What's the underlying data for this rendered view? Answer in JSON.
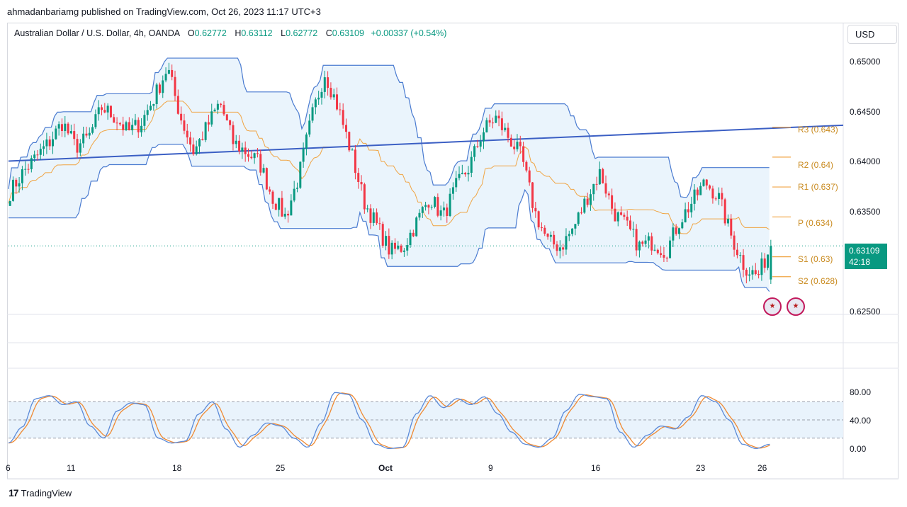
{
  "publisher": "ahmadanbariamg published on TradingView.com, Oct 26, 2023 11:17 UTC+3",
  "legend": {
    "symbol": "Australian Dollar / U.S. Dollar, 4h, OANDA",
    "o_key": "O",
    "o": "0.62772",
    "h_key": "H",
    "h": "0.63112",
    "l_key": "L",
    "l": "0.62772",
    "c_key": "C",
    "c": "0.63109",
    "change": "+0.00337 (+0.54%)"
  },
  "currency": "USD",
  "current_price": {
    "price": "0.63109",
    "countdown": "42:18"
  },
  "price_axis": [
    "0.65000",
    "0.64500",
    "0.64000",
    "0.63500",
    "0.62500"
  ],
  "osc_axis": [
    "80.00",
    "40.00",
    "0.00"
  ],
  "pivot_labels": [
    "R3 (0.643)",
    "R2 (0.64)",
    "R1 (0.637)",
    "P (0.634)",
    "S1 (0.63)",
    "S2 (0.628)"
  ],
  "date_labels": [
    "6",
    "11",
    "18",
    "25",
    "Oct",
    "9",
    "16",
    "23",
    "26"
  ],
  "brand": "TradingView",
  "flag_icon": "us-flag-icon",
  "colors": {
    "up": "#089981",
    "down": "#f23645",
    "band": "#4a7bd0",
    "pivot": "#f0a443",
    "trend": "#3b5fc4",
    "k": "#5b8ad8",
    "d": "#ef8a33"
  },
  "chart_data": {
    "type": "candlestick",
    "symbol": "AUDUSD",
    "timeframe": "4h",
    "ylim": [
      0.6245,
      0.6515
    ],
    "x_labels": [
      "6",
      "11",
      "18",
      "25",
      "Oct",
      "9",
      "16",
      "23",
      "26"
    ],
    "pivots": {
      "R3": 0.643,
      "R2": 0.64,
      "R1": 0.637,
      "P": 0.634,
      "S1": 0.63,
      "S2": 0.628
    },
    "last": {
      "open": 0.62772,
      "high": 0.63112,
      "low": 0.62772,
      "close": 0.63109
    },
    "path_anchors": [
      0.6365,
      0.6385,
      0.64,
      0.6415,
      0.6435,
      0.641,
      0.642,
      0.645,
      0.644,
      0.6425,
      0.6435,
      0.646,
      0.649,
      0.644,
      0.6405,
      0.643,
      0.6455,
      0.6415,
      0.6405,
      0.6395,
      0.636,
      0.634,
      0.638,
      0.644,
      0.6485,
      0.645,
      0.6405,
      0.6355,
      0.633,
      0.6305,
      0.631,
      0.6335,
      0.636,
      0.634,
      0.637,
      0.639,
      0.6425,
      0.644,
      0.642,
      0.64,
      0.6345,
      0.6315,
      0.631,
      0.633,
      0.636,
      0.6385,
      0.6345,
      0.633,
      0.631,
      0.6315,
      0.6305,
      0.6335,
      0.6355,
      0.6375,
      0.636,
      0.632,
      0.629,
      0.628,
      0.6311
    ],
    "stochastic_anchors": [
      12,
      38,
      85,
      90,
      75,
      80,
      40,
      20,
      65,
      78,
      75,
      20,
      12,
      15,
      60,
      80,
      35,
      5,
      25,
      45,
      40,
      20,
      5,
      45,
      95,
      92,
      50,
      10,
      3,
      5,
      60,
      90,
      70,
      85,
      75,
      88,
      60,
      30,
      10,
      5,
      20,
      65,
      92,
      88,
      85,
      30,
      5,
      25,
      40,
      35,
      55,
      90,
      80,
      50,
      10,
      3,
      10
    ]
  }
}
